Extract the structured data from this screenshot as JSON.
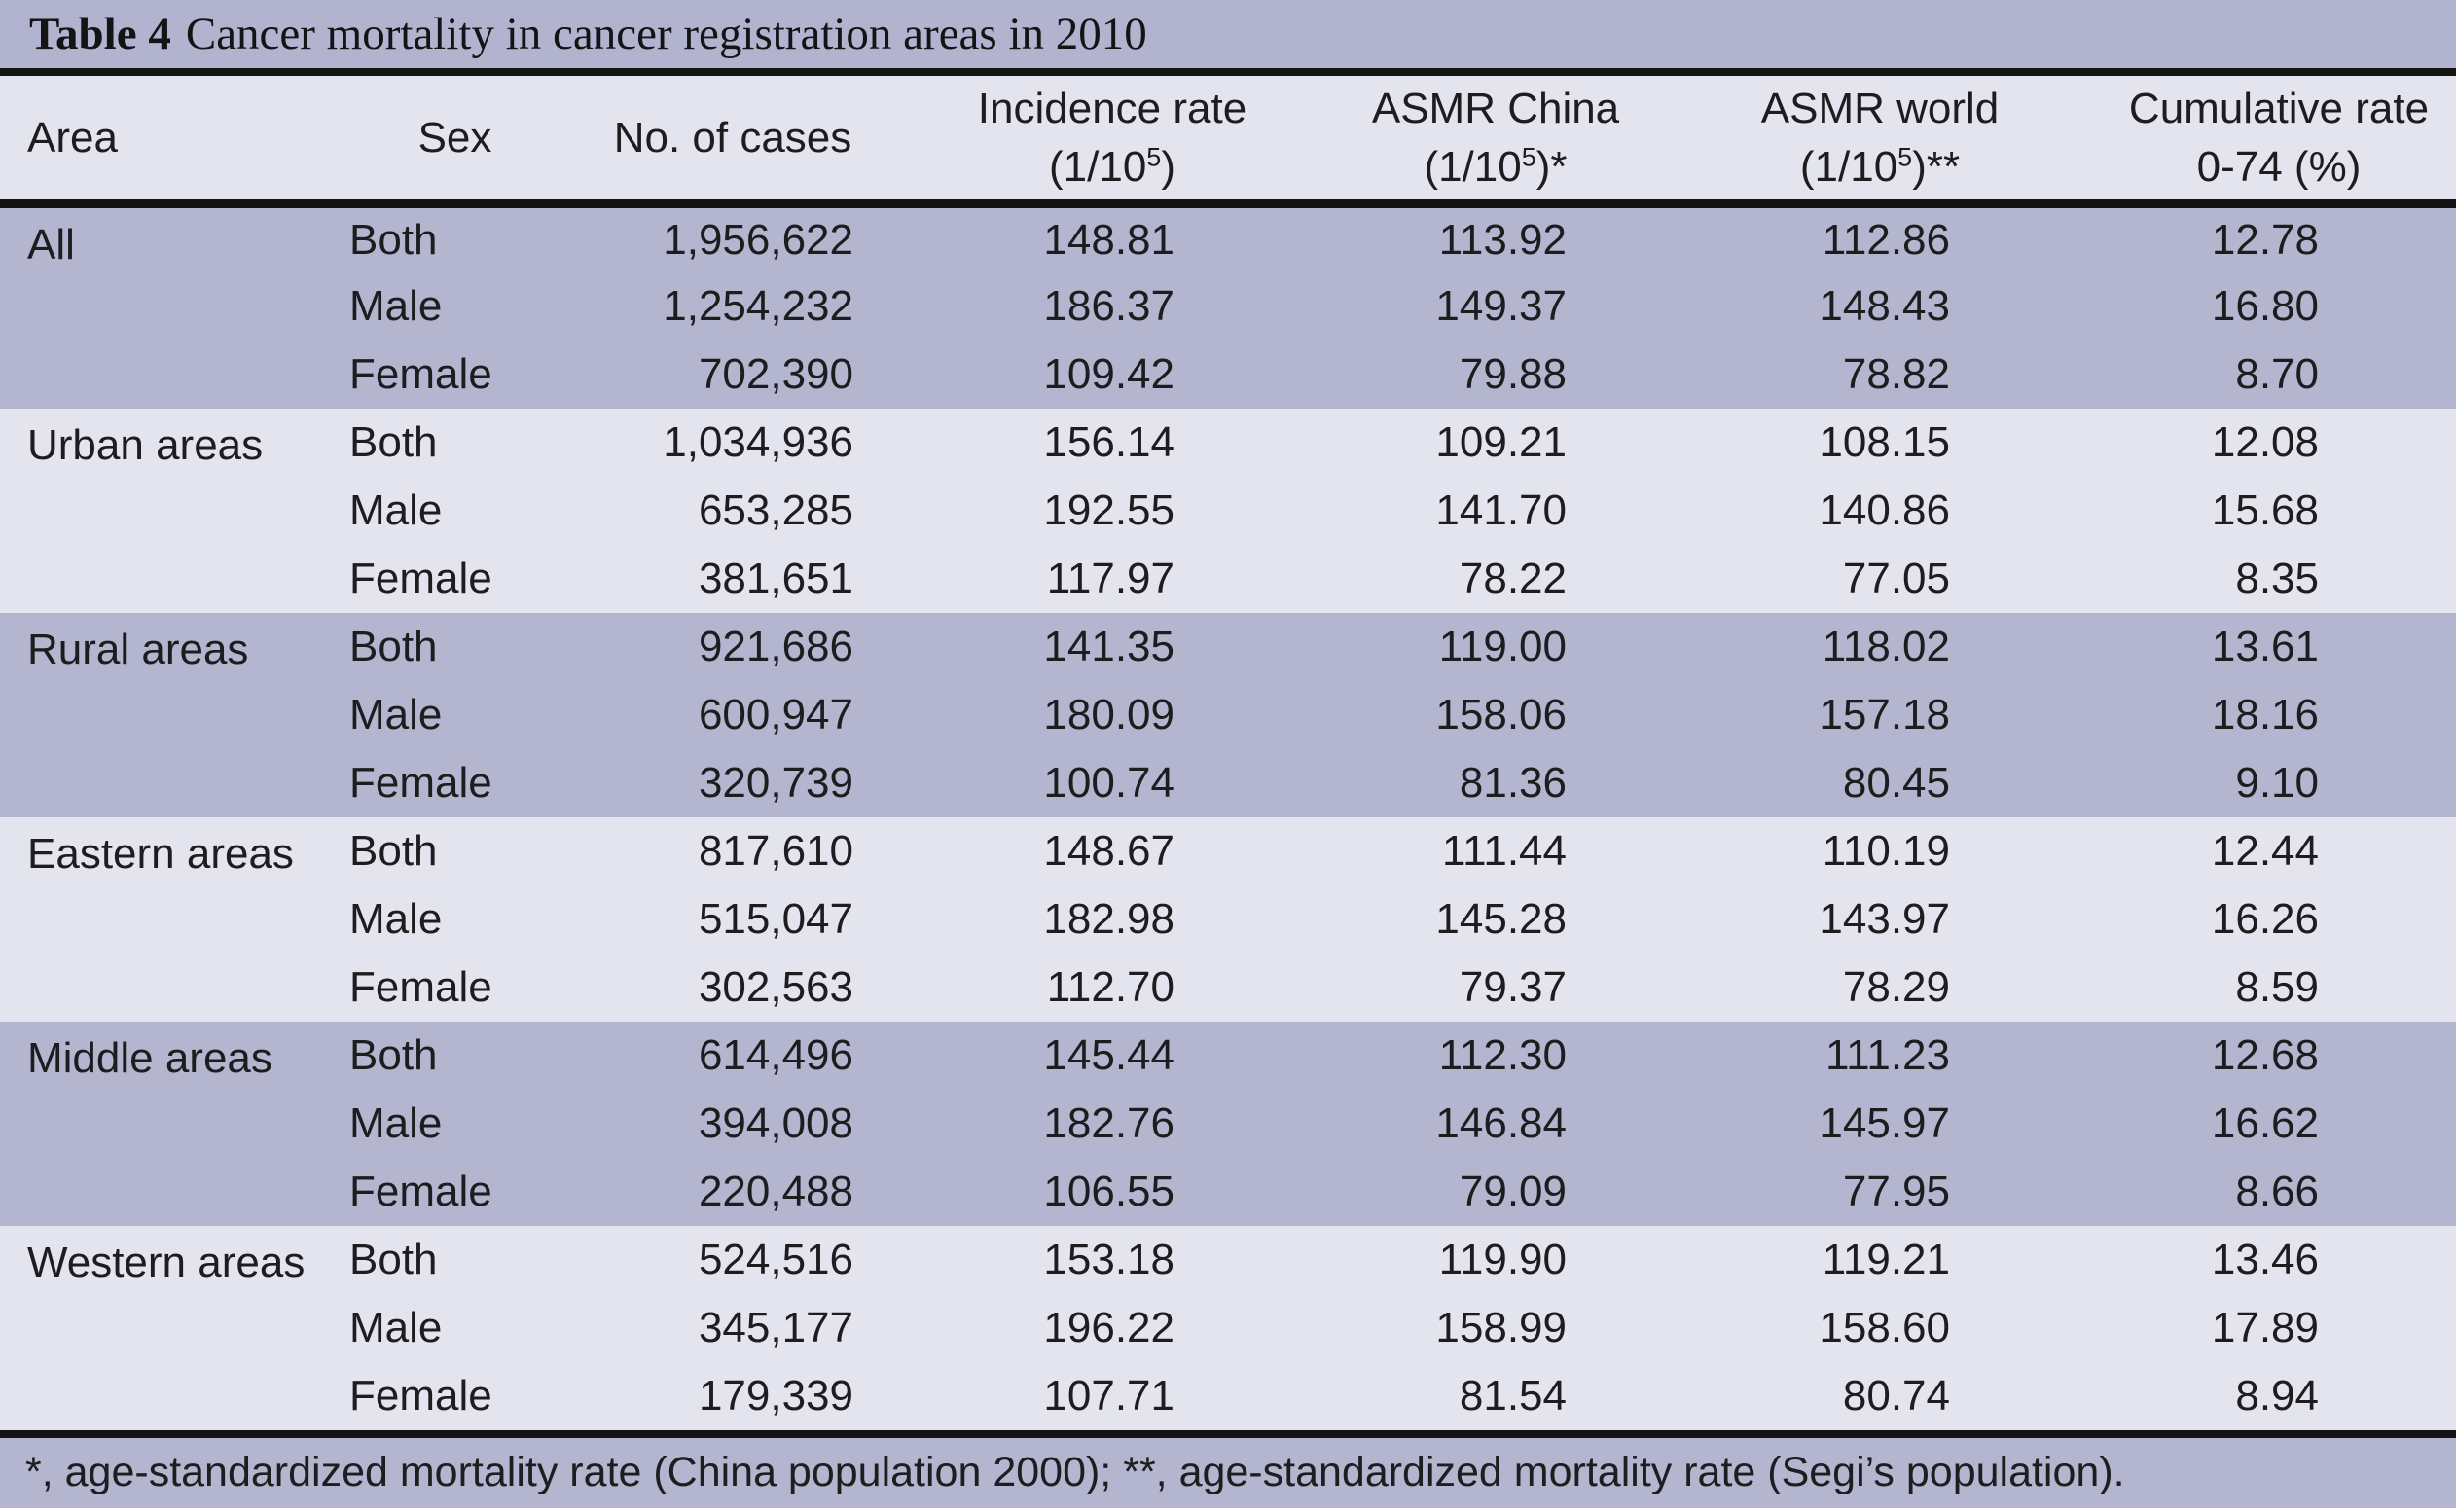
{
  "title": {
    "label": "Table 4",
    "text": "Cancer mortality in cancer registration areas in 2010"
  },
  "columns": {
    "area": "Area",
    "sex": "Sex",
    "cases": "No. of cases",
    "incidence": {
      "line1": "Incidence rate",
      "unit_prefix": "(1/10",
      "unit_sup": "5",
      "unit_suffix": ")"
    },
    "asmr_china": {
      "line1": "ASMR China",
      "unit_prefix": "(1/10",
      "unit_sup": "5",
      "unit_suffix": ")*"
    },
    "asmr_world": {
      "line1": "ASMR world",
      "unit_prefix": "(1/10",
      "unit_sup": "5",
      "unit_suffix": ")**"
    },
    "cumulative": {
      "line1": "Cumulative rate",
      "line2": "0-74 (%)"
    }
  },
  "groups": [
    {
      "area": "All",
      "rows": [
        {
          "sex": "Both",
          "cases": "1,956,622",
          "incidence": "148.81",
          "asmr_china": "113.92",
          "asmr_world": "112.86",
          "cumulative": "12.78"
        },
        {
          "sex": "Male",
          "cases": "1,254,232",
          "incidence": "186.37",
          "asmr_china": "149.37",
          "asmr_world": "148.43",
          "cumulative": "16.80"
        },
        {
          "sex": "Female",
          "cases": "702,390",
          "incidence": "109.42",
          "asmr_china": "79.88",
          "asmr_world": "78.82",
          "cumulative": "8.70"
        }
      ]
    },
    {
      "area": "Urban areas",
      "rows": [
        {
          "sex": "Both",
          "cases": "1,034,936",
          "incidence": "156.14",
          "asmr_china": "109.21",
          "asmr_world": "108.15",
          "cumulative": "12.08"
        },
        {
          "sex": "Male",
          "cases": "653,285",
          "incidence": "192.55",
          "asmr_china": "141.70",
          "asmr_world": "140.86",
          "cumulative": "15.68"
        },
        {
          "sex": "Female",
          "cases": "381,651",
          "incidence": "117.97",
          "asmr_china": "78.22",
          "asmr_world": "77.05",
          "cumulative": "8.35"
        }
      ]
    },
    {
      "area": "Rural areas",
      "rows": [
        {
          "sex": "Both",
          "cases": "921,686",
          "incidence": "141.35",
          "asmr_china": "119.00",
          "asmr_world": "118.02",
          "cumulative": "13.61"
        },
        {
          "sex": "Male",
          "cases": "600,947",
          "incidence": "180.09",
          "asmr_china": "158.06",
          "asmr_world": "157.18",
          "cumulative": "18.16"
        },
        {
          "sex": "Female",
          "cases": "320,739",
          "incidence": "100.74",
          "asmr_china": "81.36",
          "asmr_world": "80.45",
          "cumulative": "9.10"
        }
      ]
    },
    {
      "area": "Eastern areas",
      "rows": [
        {
          "sex": "Both",
          "cases": "817,610",
          "incidence": "148.67",
          "asmr_china": "111.44",
          "asmr_world": "110.19",
          "cumulative": "12.44"
        },
        {
          "sex": "Male",
          "cases": "515,047",
          "incidence": "182.98",
          "asmr_china": "145.28",
          "asmr_world": "143.97",
          "cumulative": "16.26"
        },
        {
          "sex": "Female",
          "cases": "302,563",
          "incidence": "112.70",
          "asmr_china": "79.37",
          "asmr_world": "78.29",
          "cumulative": "8.59"
        }
      ]
    },
    {
      "area": "Middle areas",
      "rows": [
        {
          "sex": "Both",
          "cases": "614,496",
          "incidence": "145.44",
          "asmr_china": "112.30",
          "asmr_world": "111.23",
          "cumulative": "12.68"
        },
        {
          "sex": "Male",
          "cases": "394,008",
          "incidence": "182.76",
          "asmr_china": "146.84",
          "asmr_world": "145.97",
          "cumulative": "16.62"
        },
        {
          "sex": "Female",
          "cases": "220,488",
          "incidence": "106.55",
          "asmr_china": "79.09",
          "asmr_world": "77.95",
          "cumulative": "8.66"
        }
      ]
    },
    {
      "area": "Western areas",
      "rows": [
        {
          "sex": "Both",
          "cases": "524,516",
          "incidence": "153.18",
          "asmr_china": "119.90",
          "asmr_world": "119.21",
          "cumulative": "13.46"
        },
        {
          "sex": "Male",
          "cases": "345,177",
          "incidence": "196.22",
          "asmr_china": "158.99",
          "asmr_world": "158.60",
          "cumulative": "17.89"
        },
        {
          "sex": "Female",
          "cases": "179,339",
          "incidence": "107.71",
          "asmr_china": "81.54",
          "asmr_world": "80.74",
          "cumulative": "8.94"
        }
      ]
    }
  ],
  "footnote": "*, age-standardized mortality rate (China population 2000); **, age-standardized mortality rate (Segi’s population).",
  "colors": {
    "band_dark": "#b4b5ce",
    "band_light": "#e4e4ee",
    "title_band": "#b2b4cf",
    "rule": "#141414",
    "text": "#1d1d1f"
  }
}
